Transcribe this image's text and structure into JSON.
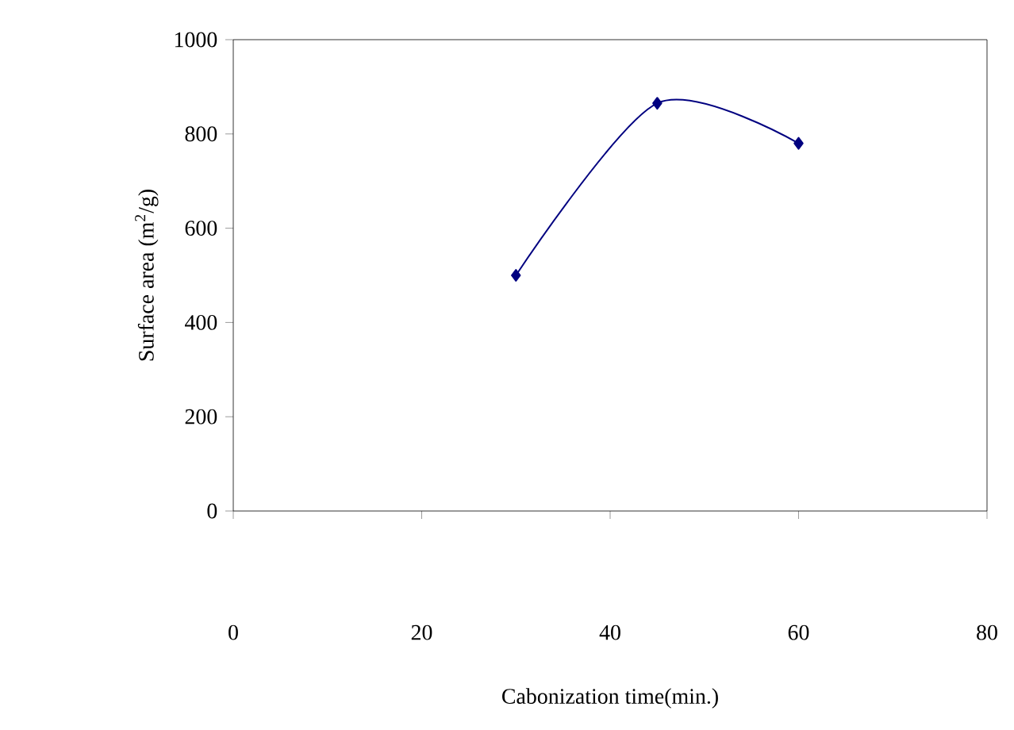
{
  "chart_data": {
    "type": "line",
    "xlabel": "Cabonization time(min.)",
    "ylabel": "Surface area (m$^{2}$/g)",
    "series": [
      {
        "color": "#000080",
        "x": [
          30,
          45,
          60
        ],
        "values": [
          500,
          865,
          780
        ]
      }
    ],
    "xlim": [
      0,
      80
    ],
    "xticks": [
      0,
      20,
      40,
      60,
      80
    ],
    "ylim": [
      0,
      1000
    ],
    "yticks": [
      0,
      200,
      400,
      600,
      800,
      1000
    ],
    "marker": "diamond",
    "line_style": "solid"
  }
}
